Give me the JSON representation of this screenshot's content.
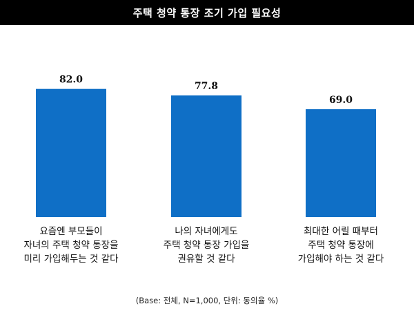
{
  "chart_data": {
    "type": "bar",
    "title": "주택 청약 통장 조기 가입 필요성",
    "categories": [
      "요즘엔 부모들이\n자녀의 주택 청약 통장을\n미리 가입해두는 것 같다",
      "나의 자녀에게도\n주택 청약 통장 가입을\n권유할 것 같다",
      "최대한 어릴 때부터\n주택 청약 통장에\n가입해야 하는 것 같다"
    ],
    "values": [
      82.0,
      77.8,
      69.0
    ],
    "value_labels": [
      "82.0",
      "77.8",
      "69.0"
    ],
    "xlabel": "",
    "ylabel": "",
    "ylim": [
      0,
      100
    ],
    "grid": false,
    "bar_color": "#0F6FC6"
  },
  "footnote": "(Base: 전체, N=1,000, 단위: 동의율 %)"
}
